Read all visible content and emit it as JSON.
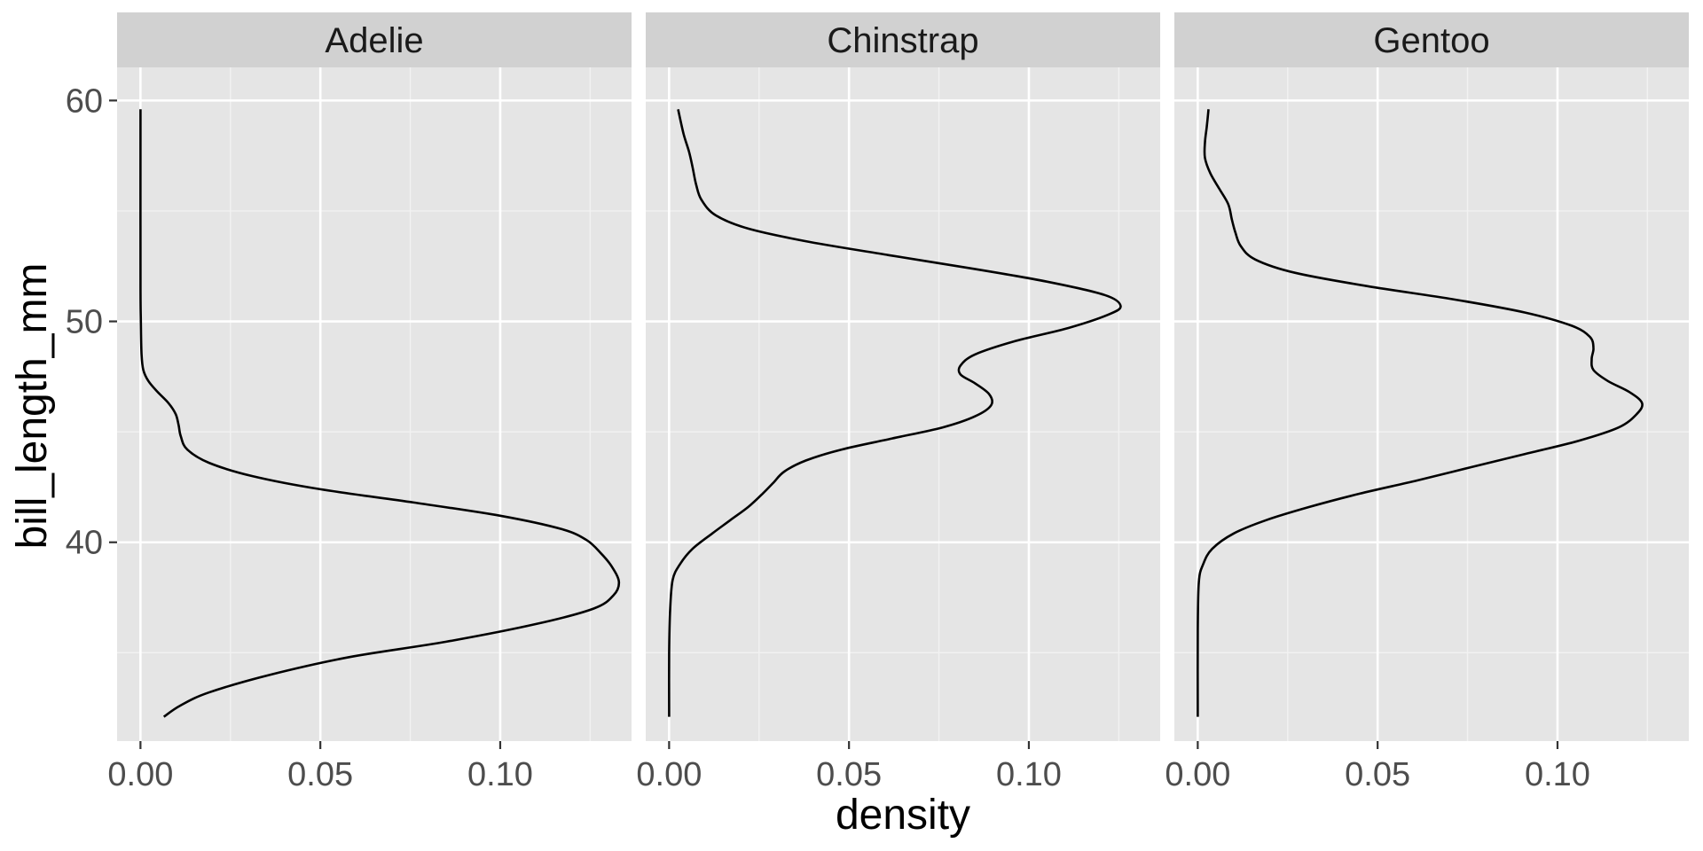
{
  "chart_data": {
    "type": "area",
    "orientation": "horizontal-density",
    "xlabel": "density",
    "ylabel": "bill_length_mm",
    "xlim": [
      -0.0065,
      0.1365
    ],
    "ylim": [
      31.0,
      61.5
    ],
    "x_ticks": [
      0.0,
      0.05,
      0.1
    ],
    "x_tick_labels": [
      "0.00",
      "0.05",
      "0.10"
    ],
    "x_minor_ticks": [
      0.025,
      0.075,
      0.125
    ],
    "y_ticks": [
      40,
      50,
      60
    ],
    "y_tick_labels": [
      "40",
      "50",
      "60"
    ],
    "y_minor_ticks": [
      35,
      45,
      55
    ],
    "grid": true,
    "panel_background": "#e5e5e5",
    "strip_background": "#d1d1d1",
    "line_color": "#000000",
    "panels": [
      {
        "label": "Adelie",
        "series": [
          {
            "points": [
              [
                32.1,
                0.0065
              ],
              [
                32.6,
                0.011
              ],
              [
                33.2,
                0.019
              ],
              [
                34.0,
                0.036
              ],
              [
                34.8,
                0.058
              ],
              [
                35.5,
                0.085
              ],
              [
                36.3,
                0.11
              ],
              [
                37.0,
                0.126
              ],
              [
                37.6,
                0.1315
              ],
              [
                38.2,
                0.133
              ],
              [
                38.9,
                0.131
              ],
              [
                39.5,
                0.128
              ],
              [
                40.1,
                0.124
              ],
              [
                40.6,
                0.117
              ],
              [
                41.2,
                0.1
              ],
              [
                41.8,
                0.076
              ],
              [
                42.4,
                0.05
              ],
              [
                43.0,
                0.031
              ],
              [
                43.6,
                0.019
              ],
              [
                44.2,
                0.013
              ],
              [
                44.8,
                0.0112
              ],
              [
                45.3,
                0.0106
              ],
              [
                45.8,
                0.0098
              ],
              [
                46.3,
                0.0078
              ],
              [
                46.8,
                0.0048
              ],
              [
                47.3,
                0.0022
              ],
              [
                47.8,
                0.0008
              ],
              [
                48.5,
                0.0003
              ],
              [
                50.0,
                0.0001
              ],
              [
                52.0,
                0.0
              ],
              [
                59.6,
                0.0
              ]
            ]
          }
        ]
      },
      {
        "label": "Chinstrap",
        "series": [
          {
            "points": [
              [
                32.1,
                0.0
              ],
              [
                35.0,
                0.0
              ],
              [
                37.0,
                0.0003
              ],
              [
                38.3,
                0.001
              ],
              [
                39.0,
                0.003
              ],
              [
                39.7,
                0.0065
              ],
              [
                40.4,
                0.012
              ],
              [
                41.0,
                0.017
              ],
              [
                41.6,
                0.022
              ],
              [
                42.2,
                0.026
              ],
              [
                42.7,
                0.029
              ],
              [
                43.2,
                0.032
              ],
              [
                43.7,
                0.038
              ],
              [
                44.2,
                0.048
              ],
              [
                44.7,
                0.062
              ],
              [
                45.2,
                0.076
              ],
              [
                45.7,
                0.085
              ],
              [
                46.2,
                0.0895
              ],
              [
                46.7,
                0.089
              ],
              [
                47.2,
                0.085
              ],
              [
                47.6,
                0.081
              ],
              [
                48.0,
                0.081
              ],
              [
                48.5,
                0.085
              ],
              [
                49.1,
                0.096
              ],
              [
                49.7,
                0.111
              ],
              [
                50.3,
                0.122
              ],
              [
                50.7,
                0.1255
              ],
              [
                51.2,
                0.121
              ],
              [
                51.8,
                0.105
              ],
              [
                52.4,
                0.084
              ],
              [
                53.0,
                0.061
              ],
              [
                53.6,
                0.039
              ],
              [
                54.2,
                0.022
              ],
              [
                54.8,
                0.013
              ],
              [
                55.5,
                0.009
              ],
              [
                56.2,
                0.0075
              ],
              [
                57.0,
                0.0065
              ],
              [
                57.7,
                0.0055
              ],
              [
                58.5,
                0.004
              ],
              [
                59.6,
                0.0025
              ]
            ]
          }
        ]
      },
      {
        "label": "Gentoo",
        "series": [
          {
            "points": [
              [
                32.1,
                0.0
              ],
              [
                36.0,
                0.0
              ],
              [
                38.2,
                0.0003
              ],
              [
                39.0,
                0.0015
              ],
              [
                39.7,
                0.004
              ],
              [
                40.4,
                0.01
              ],
              [
                41.0,
                0.019
              ],
              [
                41.6,
                0.031
              ],
              [
                42.2,
                0.045
              ],
              [
                42.8,
                0.061
              ],
              [
                43.4,
                0.076
              ],
              [
                44.0,
                0.091
              ],
              [
                44.6,
                0.106
              ],
              [
                45.2,
                0.117
              ],
              [
                45.8,
                0.122
              ],
              [
                46.3,
                0.1235
              ],
              [
                46.8,
                0.12
              ],
              [
                47.3,
                0.114
              ],
              [
                47.8,
                0.11
              ],
              [
                48.3,
                0.1095
              ],
              [
                48.8,
                0.11
              ],
              [
                49.3,
                0.109
              ],
              [
                49.8,
                0.104
              ],
              [
                50.4,
                0.091
              ],
              [
                51.0,
                0.071
              ],
              [
                51.6,
                0.047
              ],
              [
                52.2,
                0.027
              ],
              [
                52.8,
                0.016
              ],
              [
                53.4,
                0.012
              ],
              [
                54.0,
                0.0105
              ],
              [
                54.6,
                0.0095
              ],
              [
                55.3,
                0.0085
              ],
              [
                56.0,
                0.006
              ],
              [
                56.7,
                0.0035
              ],
              [
                57.4,
                0.002
              ],
              [
                58.1,
                0.002
              ],
              [
                58.8,
                0.0025
              ],
              [
                59.6,
                0.003
              ]
            ]
          }
        ]
      }
    ]
  }
}
